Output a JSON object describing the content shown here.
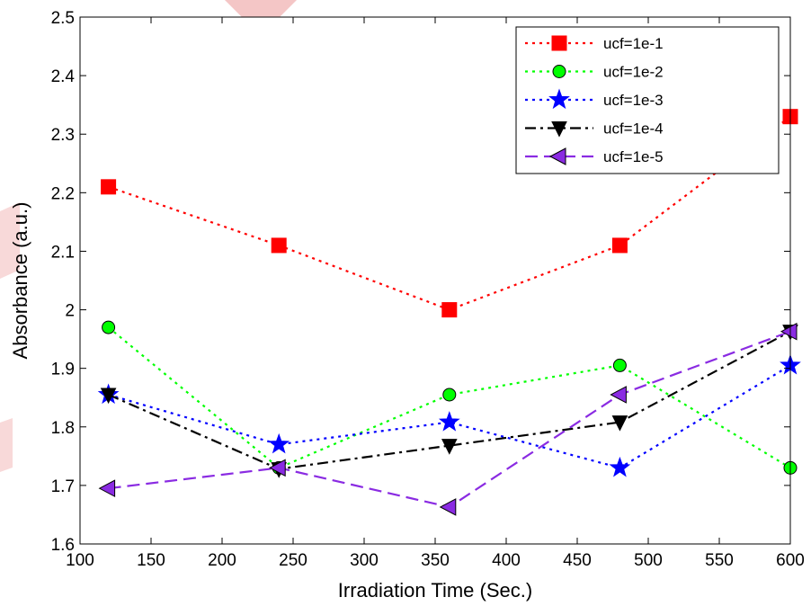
{
  "chart_data": {
    "type": "line",
    "title": "",
    "xlabel": "Irradiation Time (Sec.)",
    "ylabel": "Absorbance (a.u.)",
    "xlim": [
      100,
      600
    ],
    "ylim": [
      1.6,
      2.5
    ],
    "xticks": [
      100,
      150,
      200,
      250,
      300,
      350,
      400,
      450,
      500,
      550,
      600
    ],
    "yticks": [
      1.6,
      1.7,
      1.8,
      1.9,
      2.0,
      2.1,
      2.2,
      2.3,
      2.4,
      2.5
    ],
    "xtick_labels": [
      "100",
      "150",
      "200",
      "250",
      "300",
      "350",
      "400",
      "450",
      "500",
      "550",
      "600"
    ],
    "ytick_labels": [
      "1.6",
      "1.7",
      "1.8",
      "1.9",
      "2",
      "2.1",
      "2.2",
      "2.3",
      "2.4",
      "2.5"
    ],
    "grid": false,
    "legend_position": "top-right",
    "x": [
      120,
      240,
      360,
      480,
      600
    ],
    "series": [
      {
        "name": "ucf=1e-1",
        "values": [
          2.21,
          2.11,
          2.0,
          2.11,
          2.33
        ],
        "color": "#ff0000",
        "line_style": "dotted",
        "marker": "square"
      },
      {
        "name": "ucf=1e-2",
        "values": [
          1.97,
          1.73,
          1.855,
          1.905,
          1.73
        ],
        "color": "#00ff00",
        "line_style": "dotted",
        "marker": "circle"
      },
      {
        "name": "ucf=1e-3",
        "values": [
          1.855,
          1.77,
          1.808,
          1.73,
          1.905
        ],
        "color": "#0000ff",
        "line_style": "dotted",
        "marker": "star"
      },
      {
        "name": "ucf=1e-4",
        "values": [
          1.855,
          1.728,
          1.768,
          1.808,
          1.963
        ],
        "color": "#000000",
        "line_style": "dash-dot",
        "marker": "triangle-down"
      },
      {
        "name": "ucf=1e-5",
        "values": [
          1.695,
          1.73,
          1.663,
          1.855,
          1.963
        ],
        "color": "#8a2be2",
        "line_style": "dashed",
        "marker": "triangle-left"
      }
    ]
  }
}
